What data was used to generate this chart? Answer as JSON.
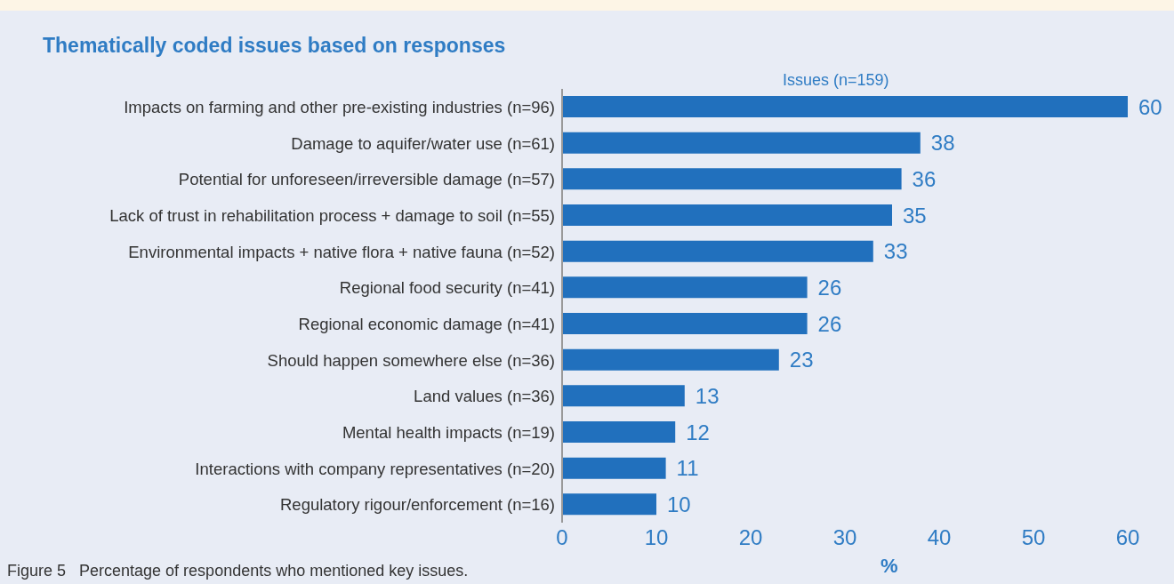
{
  "chart_data": {
    "type": "bar",
    "orientation": "horizontal",
    "title": "Thematically coded issues based on responses",
    "categories": [
      "Impacts on farming and other pre-existing industries (n=96)",
      "Damage to aquifer/water use (n=61)",
      "Potential for unforeseen/irreversible damage (n=57)",
      "Lack of trust in rehabilitation process + damage to soil (n=55)",
      "Environmental impacts + native flora + native fauna (n=52)",
      "Regional food security (n=41)",
      "Regional economic damage (n=41)",
      "Should happen somewhere else (n=36)",
      "Land values (n=36)",
      "Mental health impacts (n=19)",
      "Interactions with company representatives (n=20)",
      "Regulatory rigour/enforcement (n=16)"
    ],
    "series": [
      {
        "name": "Issues (n=159)",
        "color": "#2170bd",
        "values": [
          60,
          38,
          36,
          35,
          33,
          26,
          26,
          23,
          13,
          12,
          11,
          10
        ]
      }
    ],
    "xlim": [
      0,
      60
    ],
    "xticks": [
      0,
      10,
      20,
      30,
      40,
      50,
      60
    ],
    "xlabel": "%",
    "data_labels": true,
    "annotations": [
      "Figure 5   Percentage of respondents who mentioned key issues."
    ]
  }
}
